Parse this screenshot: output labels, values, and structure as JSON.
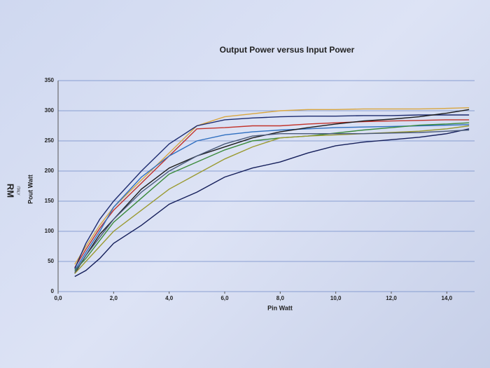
{
  "chart_data": {
    "type": "line",
    "title": "Output Power versus Input Power",
    "xlabel": "Pin Watt",
    "ylabel": "Pout Watt",
    "logo": {
      "mark": "RM",
      "text": "ITALY"
    },
    "x": [
      0.6,
      1,
      1.5,
      2,
      3,
      4,
      5,
      6,
      7,
      8,
      9,
      10,
      11,
      12,
      13,
      14,
      14.8
    ],
    "xlim": [
      0,
      15
    ],
    "ylim": [
      0,
      350
    ],
    "xticks": [
      {
        "value": 0,
        "label": "0,0"
      },
      {
        "value": 2,
        "label": "2,0"
      },
      {
        "value": 4,
        "label": "4,0"
      },
      {
        "value": 6,
        "label": "6,0"
      },
      {
        "value": 8,
        "label": "8,0"
      },
      {
        "value": 10,
        "label": "10,0"
      },
      {
        "value": 12,
        "label": "12,0"
      },
      {
        "value": 14,
        "label": "14,0"
      }
    ],
    "yticks": [
      0,
      50,
      100,
      150,
      200,
      250,
      300,
      350
    ],
    "grid": true,
    "series": [
      {
        "color": "#d9a640",
        "values": [
          45,
          75,
          110,
          140,
          185,
          230,
          275,
          290,
          295,
          300,
          302,
          302,
          303,
          303,
          303,
          304,
          305
        ]
      },
      {
        "color": "#c2332b",
        "values": [
          40,
          70,
          105,
          135,
          180,
          225,
          270,
          272,
          275,
          275,
          278,
          280,
          282,
          283,
          284,
          285,
          285
        ]
      },
      {
        "color": "#2f6fc0",
        "values": [
          35,
          65,
          100,
          140,
          190,
          225,
          250,
          260,
          265,
          268,
          270,
          272,
          273,
          274,
          275,
          276,
          277
        ]
      },
      {
        "color": "#1c2a6e",
        "values": [
          38,
          80,
          120,
          150,
          200,
          245,
          275,
          285,
          288,
          290,
          291,
          291,
          292,
          292,
          293,
          293,
          293
        ]
      },
      {
        "color": "#1a1a1a",
        "values": [
          30,
          60,
          95,
          120,
          170,
          205,
          225,
          240,
          255,
          265,
          272,
          278,
          283,
          286,
          290,
          296,
          302
        ]
      },
      {
        "color": "#3a8a3a",
        "values": [
          35,
          55,
          85,
          115,
          155,
          195,
          215,
          235,
          250,
          255,
          258,
          263,
          268,
          272,
          276,
          278,
          280
        ]
      },
      {
        "color": "#9a9a30",
        "values": [
          30,
          50,
          75,
          100,
          135,
          170,
          195,
          220,
          240,
          255,
          258,
          260,
          262,
          264,
          266,
          270,
          275
        ]
      },
      {
        "color": "#141e5a",
        "values": [
          25,
          35,
          55,
          80,
          110,
          145,
          165,
          190,
          205,
          215,
          230,
          242,
          248,
          252,
          256,
          262,
          270
        ]
      },
      {
        "color": "#4a5a7a",
        "values": [
          32,
          60,
          90,
          120,
          165,
          200,
          225,
          245,
          258,
          262,
          262,
          262,
          262,
          263,
          264,
          266,
          268
        ]
      }
    ]
  }
}
